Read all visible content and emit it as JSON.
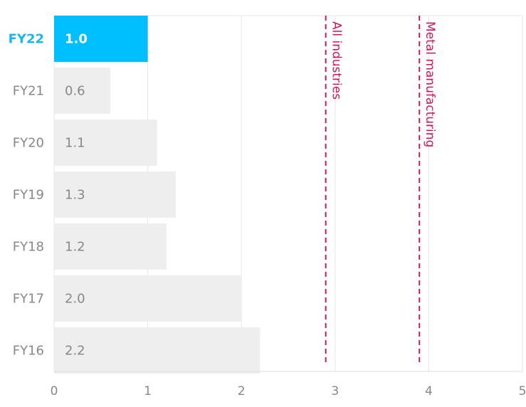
{
  "chart_data": {
    "type": "bar",
    "orientation": "horizontal",
    "categories": [
      "FY22",
      "FY21",
      "FY20",
      "FY19",
      "FY18",
      "FY17",
      "FY16"
    ],
    "values": [
      1.0,
      0.6,
      1.1,
      1.3,
      1.2,
      2.0,
      2.2
    ],
    "value_labels": [
      "1.0",
      "0.6",
      "1.1",
      "1.3",
      "1.2",
      "2.0",
      "2.2"
    ],
    "highlight_category": "FY22",
    "xlim": [
      0,
      5
    ],
    "xticks": [
      0,
      1,
      2,
      3,
      4,
      5
    ],
    "xtick_labels": [
      "0",
      "1",
      "2",
      "3",
      "4",
      "5"
    ],
    "grid": true,
    "reference_lines": [
      {
        "label": "All industries",
        "value": 2.9
      },
      {
        "label": "Metal manufacturing",
        "value": 3.9
      }
    ],
    "colors": {
      "highlight_bar": "#00bfff",
      "bar": "#eeeeee",
      "reference_line": "#d4145a",
      "highlight_label": "#1ab7ea",
      "text": "#888888",
      "grid": "#e6e6e6"
    }
  }
}
